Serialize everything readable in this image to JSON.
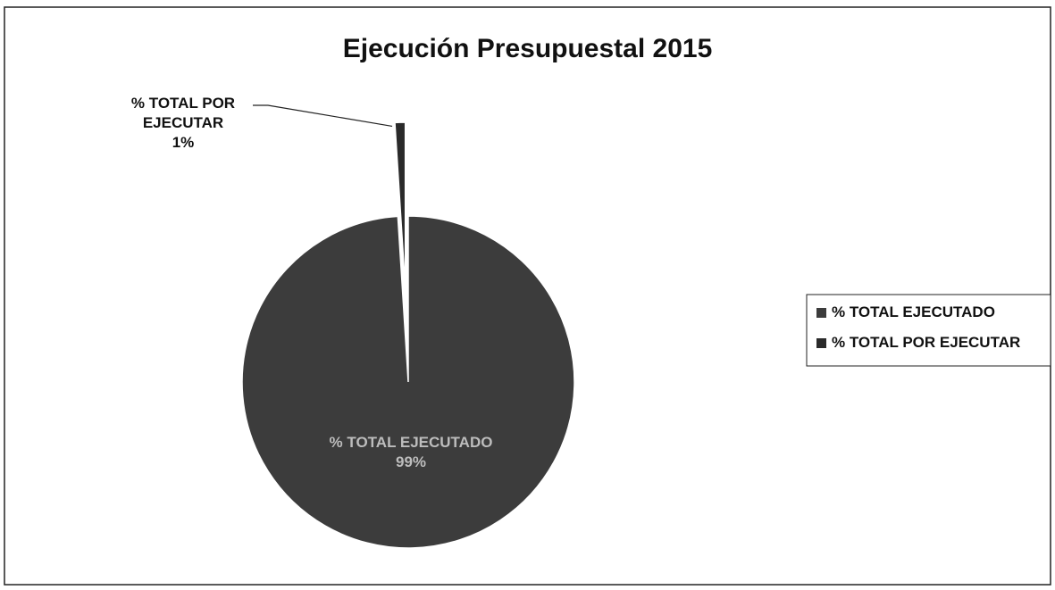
{
  "chart_data": {
    "type": "pie",
    "title": "Ejecución Presupuestal 2015",
    "categories": [
      "% TOTAL EJECUTADO",
      "% TOTAL POR EJECUTAR"
    ],
    "values": [
      99,
      1
    ],
    "value_labels": [
      "99%",
      "1%"
    ],
    "colors": [
      "#3c3c3c",
      "#2a2a2a"
    ],
    "legend": "right"
  }
}
